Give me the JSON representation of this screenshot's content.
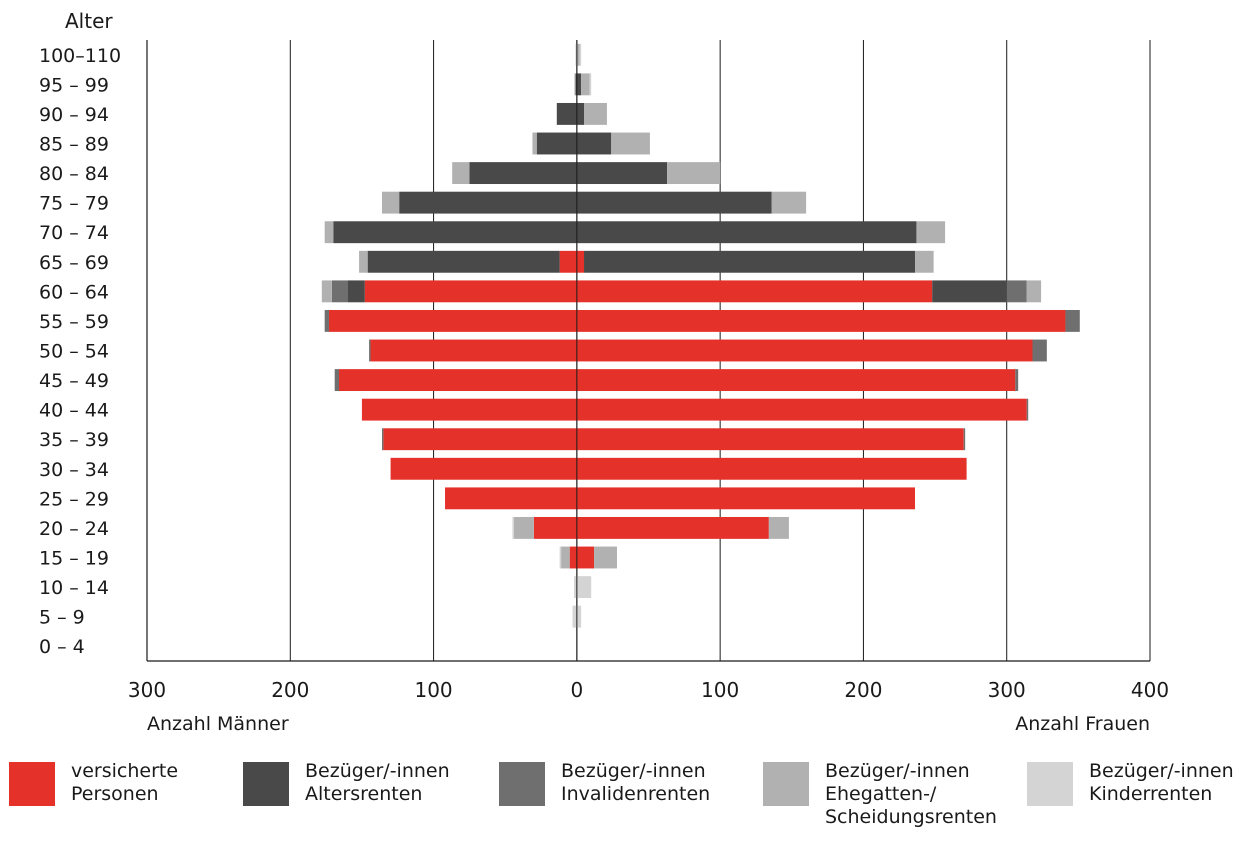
{
  "chart_data": {
    "type": "bar",
    "orientation": "horizontal-pyramid",
    "ylabel": "Alter",
    "xlabel_left": "Anzahl Männer",
    "xlabel_right": "Anzahl Frauen",
    "xlim": [
      -300,
      400
    ],
    "xticks": [
      -300,
      -200,
      -100,
      0,
      100,
      200,
      300,
      400
    ],
    "xtick_labels": [
      "300",
      "200",
      "100",
      "0",
      "100",
      "200",
      "300",
      "400"
    ],
    "grid": "vertical",
    "categories": [
      "100–110",
      "95 – 99",
      "90 – 94",
      "85 – 89",
      "80 – 84",
      "75 – 79",
      "70 – 74",
      "65 – 69",
      "60 – 64",
      "55 – 59",
      "50 – 54",
      "45 – 49",
      "40 – 44",
      "35 – 39",
      "30 – 34",
      "25 – 29",
      "20 – 24",
      "15 – 19",
      "10 – 14",
      "5 – 9",
      "0 – 4"
    ],
    "series": [
      {
        "name": "versicherte Personen",
        "color": "#e4322b",
        "men": [
          0,
          0,
          0,
          0,
          0,
          0,
          0,
          12,
          148,
          173,
          144,
          166,
          150,
          135,
          130,
          92,
          30,
          5,
          0,
          0,
          0
        ],
        "women": [
          0,
          0,
          0,
          0,
          0,
          0,
          0,
          5,
          248,
          341,
          318,
          306,
          314,
          270,
          272,
          236,
          134,
          12,
          0,
          0,
          0
        ]
      },
      {
        "name": "Bezüger/-innen Altersrenten",
        "color": "#494949",
        "men": [
          0,
          1,
          14,
          28,
          75,
          124,
          170,
          134,
          12,
          0,
          0,
          0,
          0,
          0,
          0,
          0,
          0,
          0,
          0,
          0,
          0
        ],
        "women": [
          0,
          3,
          5,
          24,
          63,
          136,
          237,
          231,
          52,
          0,
          0,
          0,
          0,
          0,
          0,
          0,
          0,
          0,
          0,
          0,
          0
        ]
      },
      {
        "name": "Bezüger/-innen Invalidenrenten",
        "color": "#6f6f6f",
        "men": [
          0,
          0,
          0,
          0,
          0,
          0,
          0,
          0,
          11,
          3,
          1,
          3,
          0,
          1,
          0,
          0,
          0,
          0,
          0,
          0,
          0
        ],
        "women": [
          0,
          0,
          0,
          0,
          0,
          0,
          0,
          0,
          14,
          10,
          10,
          2,
          1,
          1,
          0,
          0,
          0,
          0,
          0,
          0,
          0
        ]
      },
      {
        "name": "Bezüger/-innen Ehegatten-/ Scheidungsrenten",
        "color": "#b1b1b1",
        "men": [
          0,
          0,
          0,
          3,
          12,
          12,
          6,
          6,
          7,
          0,
          0,
          0,
          0,
          0,
          0,
          0,
          14,
          6,
          0,
          0,
          0
        ],
        "women": [
          2,
          6,
          16,
          27,
          37,
          24,
          20,
          13,
          10,
          0,
          0,
          0,
          0,
          0,
          0,
          0,
          14,
          16,
          0,
          0,
          0
        ]
      },
      {
        "name": "Bezüger/-innen Kinderrenten",
        "color": "#d4d4d4",
        "men": [
          1,
          1,
          0,
          0,
          0,
          0,
          0,
          0,
          0,
          0,
          0,
          0,
          0,
          0,
          0,
          0,
          1,
          1,
          2,
          3,
          0
        ],
        "women": [
          1,
          1,
          0,
          0,
          0,
          0,
          0,
          0,
          0,
          0,
          0,
          0,
          0,
          0,
          0,
          0,
          0,
          0,
          10,
          3,
          0
        ]
      }
    ]
  },
  "legend": {
    "items": [
      {
        "label": "versicherte\nPersonen",
        "color": "#e4322b"
      },
      {
        "label": "Bezüger/-innen\nAltersrenten",
        "color": "#494949"
      },
      {
        "label": "Bezüger/-innen\nInvalidenrenten",
        "color": "#6f6f6f"
      },
      {
        "label": "Bezüger/-innen\nEhegatten-/\nScheidungsrenten",
        "color": "#b1b1b1"
      },
      {
        "label": "Bezüger/-innen\nKinderrenten",
        "color": "#d4d4d4"
      }
    ]
  }
}
